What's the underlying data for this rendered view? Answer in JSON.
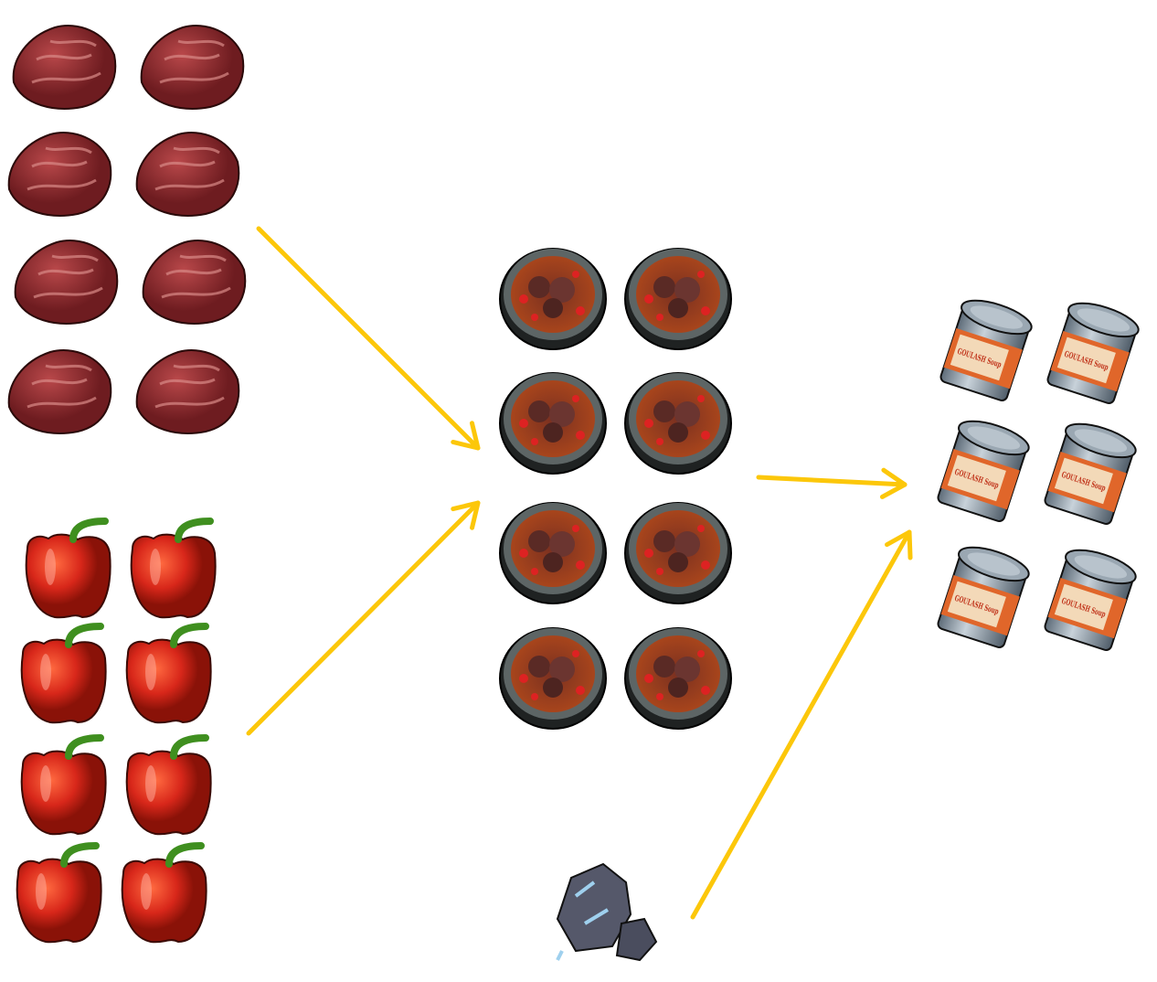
{
  "colors": {
    "arrow": "#FCC70A",
    "meat": "#8e2a2c",
    "pepper": "#d8271a",
    "bowl": "#2e3232",
    "can": "#8a98a4",
    "ore": "#5a6070"
  },
  "groups": [
    {
      "name": "raw-meat",
      "icon": "raw-meat-icon",
      "count": 8
    },
    {
      "name": "bell-pepper",
      "icon": "bell-pepper-icon",
      "count": 8
    },
    {
      "name": "goulash-bowl",
      "icon": "goulash-bowl-icon",
      "count": 8
    },
    {
      "name": "metal-ore",
      "icon": "metal-ore-icon",
      "count": 1
    },
    {
      "name": "goulash-soup-can",
      "icon": "soup-can-icon",
      "count": 6,
      "label_lettering": "GOULASH Soup"
    }
  ],
  "arrows": [
    {
      "from": "raw-meat",
      "to": "goulash-bowl"
    },
    {
      "from": "bell-pepper",
      "to": "goulash-bowl"
    },
    {
      "from": "goulash-bowl",
      "to": "goulash-soup-can"
    },
    {
      "from": "metal-ore",
      "to": "goulash-soup-can"
    }
  ]
}
